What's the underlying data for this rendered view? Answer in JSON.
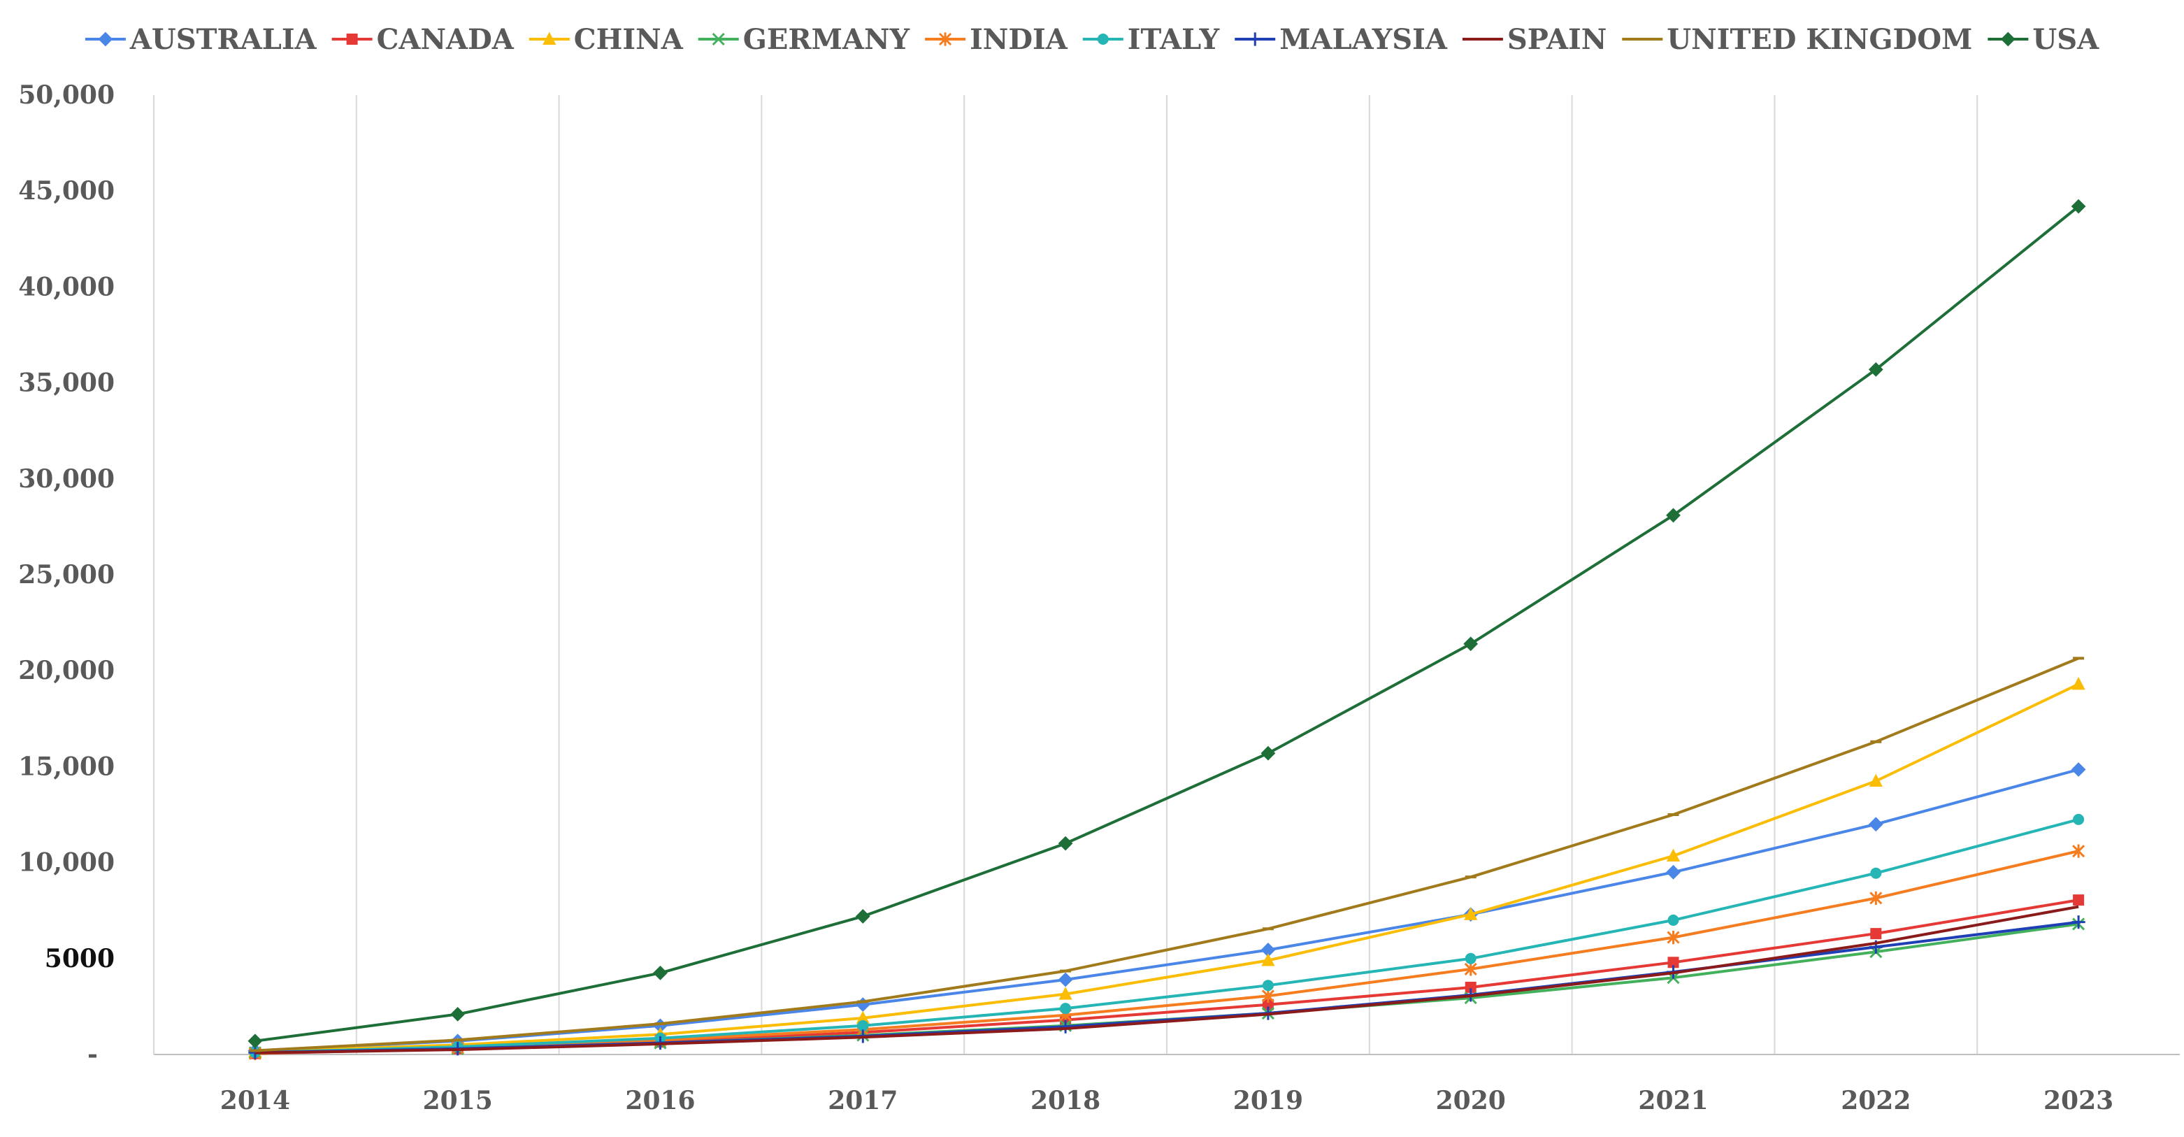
{
  "chart_data": {
    "type": "line",
    "title": "",
    "xlabel": "",
    "ylabel": "",
    "x": [
      "2014",
      "2015",
      "2016",
      "2017",
      "2018",
      "2019",
      "2020",
      "2021",
      "2022",
      "2023"
    ],
    "ylim": [
      0,
      50000
    ],
    "yticks": [
      0,
      5000,
      10000,
      15000,
      20000,
      25000,
      30000,
      35000,
      40000,
      45000,
      50000
    ],
    "ytick_labels": [
      "-",
      "5000",
      "10,000",
      "15,000",
      "20,000",
      "25,000",
      "30,000",
      "35,000",
      "40,000",
      "45,000",
      "50,000"
    ],
    "grid": "vertical",
    "legend_position": "top",
    "series": [
      {
        "name": "AUSTRALIA",
        "color": "#4a86e8",
        "marker": "diamond",
        "values": [
          200,
          700,
          1500,
          2600,
          3900,
          5450,
          7300,
          9500,
          12000,
          14850
        ]
      },
      {
        "name": "CANADA",
        "color": "#e53935",
        "marker": "square",
        "values": [
          50,
          300,
          650,
          1150,
          1800,
          2600,
          3500,
          4800,
          6300,
          8050
        ]
      },
      {
        "name": "CHINA",
        "color": "#fbbc04",
        "marker": "triangle",
        "values": [
          150,
          500,
          1050,
          1900,
          3150,
          4900,
          7300,
          10350,
          14250,
          19300
        ]
      },
      {
        "name": "GERMANY",
        "color": "#43b05c",
        "marker": "x",
        "values": [
          100,
          300,
          600,
          1000,
          1500,
          2150,
          2950,
          4000,
          5350,
          6800
        ]
      },
      {
        "name": "INDIA",
        "color": "#f57c1f",
        "marker": "star",
        "values": [
          50,
          350,
          750,
          1300,
          2050,
          3050,
          4450,
          6100,
          8150,
          10600
        ]
      },
      {
        "name": "ITALY",
        "color": "#26b5b5",
        "marker": "circle",
        "values": [
          100,
          400,
          850,
          1500,
          2400,
          3600,
          5000,
          7000,
          9450,
          12250
        ]
      },
      {
        "name": "MALAYSIA",
        "color": "#1f3fb4",
        "marker": "plus",
        "values": [
          100,
          300,
          600,
          950,
          1450,
          2150,
          3100,
          4300,
          5600,
          6900
        ]
      },
      {
        "name": "SPAIN",
        "color": "#8b1a1a",
        "marker": "none",
        "values": [
          80,
          250,
          550,
          900,
          1350,
          2100,
          3050,
          4250,
          5800,
          7700
        ]
      },
      {
        "name": "UNITED KINGDOM",
        "color": "#a17a1c",
        "marker": "dash",
        "values": [
          200,
          750,
          1600,
          2750,
          4350,
          6550,
          9250,
          12500,
          16300,
          20650
        ]
      },
      {
        "name": "USA",
        "color": "#1e6e38",
        "marker": "diamond",
        "values": [
          700,
          2100,
          4250,
          7200,
          11000,
          15700,
          21400,
          28100,
          35700,
          44200
        ]
      }
    ]
  }
}
